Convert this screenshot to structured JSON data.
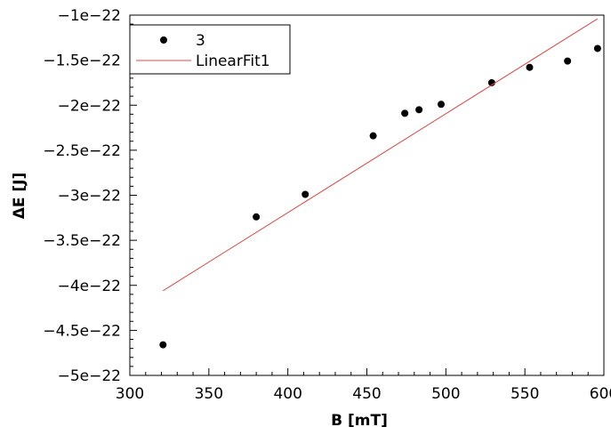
{
  "chart_data": {
    "type": "scatter",
    "xlabel": "B [mT]",
    "ylabel": "ΔE [J]",
    "xlim": [
      300,
      600
    ],
    "ylim": [
      -5e-22,
      -1e-22
    ],
    "x_ticks": [
      300,
      350,
      400,
      450,
      500,
      550,
      600
    ],
    "x_tick_labels": [
      "300",
      "350",
      "400",
      "450",
      "500",
      "550",
      "600"
    ],
    "y_ticks": [
      -5e-22,
      -4.5e-22,
      -4e-22,
      -3.5e-22,
      -3e-22,
      -2.5e-22,
      -2e-22,
      -1.5e-22,
      -1e-22
    ],
    "y_tick_labels": [
      "−5e−22",
      "−4.5e−22",
      "−4e−22",
      "−3.5e−22",
      "−3e−22",
      "−2.5e−22",
      "−2e−22",
      "−1.5e−22",
      "−1e−22"
    ],
    "grid": false,
    "legend_position": "top-left",
    "series": [
      {
        "name": "3",
        "kind": "scatter",
        "color": "#000000",
        "x": [
          321,
          380,
          411,
          454,
          474,
          483,
          497,
          529,
          553,
          577,
          596
        ],
        "y": [
          -4.66e-22,
          -3.24e-22,
          -2.99e-22,
          -2.34e-22,
          -2.09e-22,
          -2.05e-22,
          -1.99e-22,
          -1.75e-22,
          -1.58e-22,
          -1.51e-22,
          -1.37e-22
        ]
      },
      {
        "name": "LinearFit1",
        "kind": "line",
        "color": "#e04848",
        "x": [
          321,
          596
        ],
        "y": [
          -4.06e-22,
          -1.04e-22
        ]
      }
    ]
  }
}
